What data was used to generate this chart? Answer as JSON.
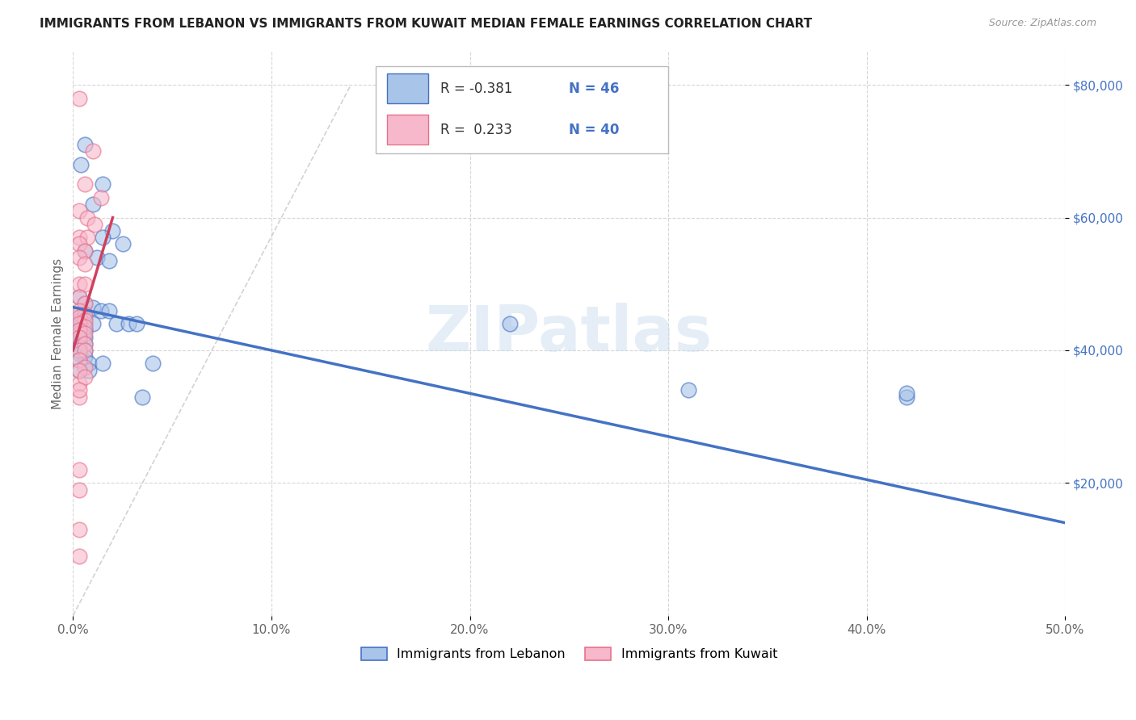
{
  "title": "IMMIGRANTS FROM LEBANON VS IMMIGRANTS FROM KUWAIT MEDIAN FEMALE EARNINGS CORRELATION CHART",
  "source": "Source: ZipAtlas.com",
  "ylabel": "Median Female Earnings",
  "yticks": [
    20000,
    40000,
    60000,
    80000
  ],
  "ytick_labels": [
    "$20,000",
    "$40,000",
    "$60,000",
    "$80,000"
  ],
  "ylim": [
    0,
    85000
  ],
  "xlim": [
    0.0,
    0.5
  ],
  "xticks": [
    0.0,
    0.1,
    0.2,
    0.3,
    0.4,
    0.5
  ],
  "xtick_labels": [
    "0.0%",
    "10.0%",
    "20.0%",
    "30.0%",
    "40.0%",
    "50.0%"
  ],
  "legend_r_lebanon": "-0.381",
  "legend_n_lebanon": "46",
  "legend_r_kuwait": "0.233",
  "legend_n_kuwait": "40",
  "watermark": "ZIPatlas",
  "lebanon_face_color": "#a8c4e8",
  "kuwait_face_color": "#f7b8cb",
  "lebanon_edge_color": "#4472c4",
  "kuwait_edge_color": "#e8718a",
  "trendline_lebanon_color": "#4472c4",
  "trendline_kuwait_color": "#d04060",
  "diagonal_color": "#c8c8c8",
  "legend_text_color": "#333333",
  "legend_value_color": "#4472c4",
  "lebanon_scatter": [
    [
      0.006,
      71000
    ],
    [
      0.004,
      68000
    ],
    [
      0.015,
      65000
    ],
    [
      0.01,
      62000
    ],
    [
      0.02,
      58000
    ],
    [
      0.015,
      57000
    ],
    [
      0.025,
      56000
    ],
    [
      0.006,
      55000
    ],
    [
      0.012,
      54000
    ],
    [
      0.018,
      53500
    ],
    [
      0.003,
      48000
    ],
    [
      0.006,
      47000
    ],
    [
      0.01,
      46500
    ],
    [
      0.014,
      46000
    ],
    [
      0.018,
      46000
    ],
    [
      0.003,
      45500
    ],
    [
      0.006,
      45000
    ],
    [
      0.003,
      44500
    ],
    [
      0.006,
      44000
    ],
    [
      0.01,
      44000
    ],
    [
      0.003,
      43500
    ],
    [
      0.006,
      43000
    ],
    [
      0.003,
      43000
    ],
    [
      0.003,
      42500
    ],
    [
      0.006,
      42000
    ],
    [
      0.003,
      41500
    ],
    [
      0.003,
      41000
    ],
    [
      0.006,
      41000
    ],
    [
      0.003,
      40500
    ],
    [
      0.006,
      40000
    ],
    [
      0.003,
      39500
    ],
    [
      0.006,
      39000
    ],
    [
      0.003,
      38500
    ],
    [
      0.008,
      38000
    ],
    [
      0.015,
      38000
    ],
    [
      0.003,
      37000
    ],
    [
      0.008,
      37000
    ],
    [
      0.022,
      44000
    ],
    [
      0.028,
      44000
    ],
    [
      0.032,
      44000
    ],
    [
      0.04,
      38000
    ],
    [
      0.035,
      33000
    ],
    [
      0.22,
      44000
    ],
    [
      0.31,
      34000
    ],
    [
      0.42,
      33000
    ],
    [
      0.42,
      33500
    ]
  ],
  "kuwait_scatter": [
    [
      0.003,
      78000
    ],
    [
      0.01,
      70000
    ],
    [
      0.006,
      65000
    ],
    [
      0.014,
      63000
    ],
    [
      0.003,
      61000
    ],
    [
      0.007,
      60000
    ],
    [
      0.011,
      59000
    ],
    [
      0.003,
      57000
    ],
    [
      0.007,
      57000
    ],
    [
      0.003,
      56000
    ],
    [
      0.006,
      55000
    ],
    [
      0.003,
      54000
    ],
    [
      0.006,
      53000
    ],
    [
      0.003,
      50000
    ],
    [
      0.006,
      50000
    ],
    [
      0.003,
      48000
    ],
    [
      0.006,
      47000
    ],
    [
      0.003,
      46000
    ],
    [
      0.006,
      45500
    ],
    [
      0.003,
      45000
    ],
    [
      0.006,
      44500
    ],
    [
      0.003,
      44000
    ],
    [
      0.006,
      43500
    ],
    [
      0.003,
      43000
    ],
    [
      0.006,
      42500
    ],
    [
      0.003,
      42000
    ],
    [
      0.006,
      41000
    ],
    [
      0.003,
      40000
    ],
    [
      0.006,
      40000
    ],
    [
      0.003,
      38500
    ],
    [
      0.006,
      37500
    ],
    [
      0.003,
      35000
    ],
    [
      0.003,
      33000
    ],
    [
      0.003,
      22000
    ],
    [
      0.003,
      19000
    ],
    [
      0.003,
      13000
    ],
    [
      0.003,
      9000
    ],
    [
      0.003,
      37000
    ],
    [
      0.006,
      36000
    ],
    [
      0.003,
      34000
    ]
  ],
  "lebanon_trend_x": [
    0.0,
    0.5
  ],
  "lebanon_trend_y": [
    46500,
    14000
  ],
  "kuwait_trend_x": [
    0.0,
    0.02
  ],
  "kuwait_trend_y": [
    40000,
    60000
  ]
}
